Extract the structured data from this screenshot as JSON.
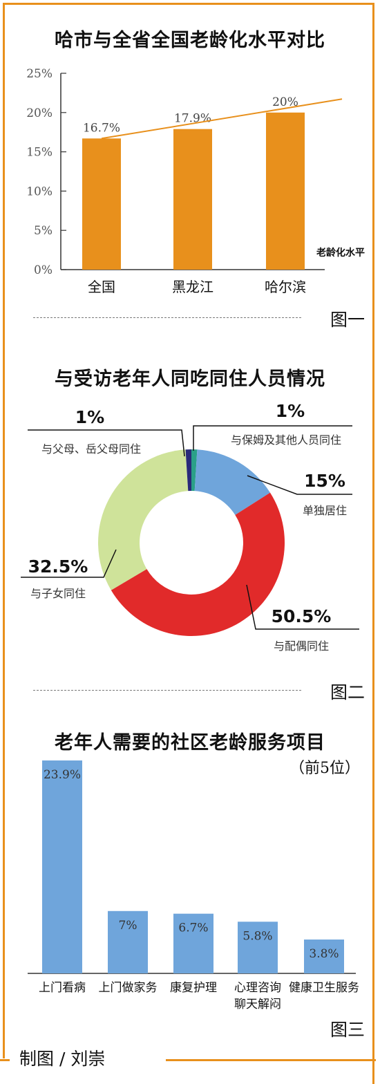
{
  "colors": {
    "frame": "#e8901c",
    "bar_orange": "#e8901c",
    "bar_blue": "#6fa5db",
    "pie_blue": "#6fa5db",
    "pie_red": "#e12a2a",
    "pie_green": "#cfe39a",
    "pie_navy": "#2a2a7a",
    "pie_teal": "#2aa088"
  },
  "chart_data": [
    {
      "type": "bar",
      "title": "哈市与全省全国老龄化水平对比",
      "categories": [
        "全国",
        "黑龙江",
        "哈尔滨"
      ],
      "values": [
        16.7,
        17.9,
        20
      ],
      "value_labels": [
        "16.7%",
        "17.9%",
        "20%"
      ],
      "yticks": [
        "0%",
        "5%",
        "10%",
        "15%",
        "20%",
        "25%"
      ],
      "ylim": [
        0,
        25
      ],
      "ylabel": "老龄化水平",
      "trend_line": true,
      "figure_label": "图一"
    },
    {
      "type": "pie",
      "title": "与受访老年人同吃同住人员情况",
      "slices": [
        {
          "label": "与保姆及其他人员同住",
          "value": 1,
          "value_label": "1%"
        },
        {
          "label": "单独居住",
          "value": 15,
          "value_label": "15%"
        },
        {
          "label": "与配偶同住",
          "value": 50.5,
          "value_label": "50.5%"
        },
        {
          "label": "与子女同住",
          "value": 32.5,
          "value_label": "32.5%"
        },
        {
          "label": "与父母、岳父母同住",
          "value": 1,
          "value_label": "1%"
        }
      ],
      "figure_label": "图二"
    },
    {
      "type": "bar",
      "title": "老年人需要的社区老龄服务项目",
      "subtitle": "（前5位）",
      "categories": [
        "上门看病",
        "上门做家务",
        "康复护理",
        "心理咨询聊天解闷",
        "健康卫生服务"
      ],
      "category_lines": [
        [
          "上门看病"
        ],
        [
          "上门做家务"
        ],
        [
          "康复护理"
        ],
        [
          "心理咨询",
          "聊天解闷"
        ],
        [
          "健康卫生服务"
        ]
      ],
      "values": [
        23.9,
        7,
        6.7,
        5.8,
        3.8
      ],
      "value_labels": [
        "23.9%",
        "7%",
        "6.7%",
        "5.8%",
        "3.8%"
      ],
      "figure_label": "图三"
    }
  ],
  "credit": "制图 / 刘崇"
}
